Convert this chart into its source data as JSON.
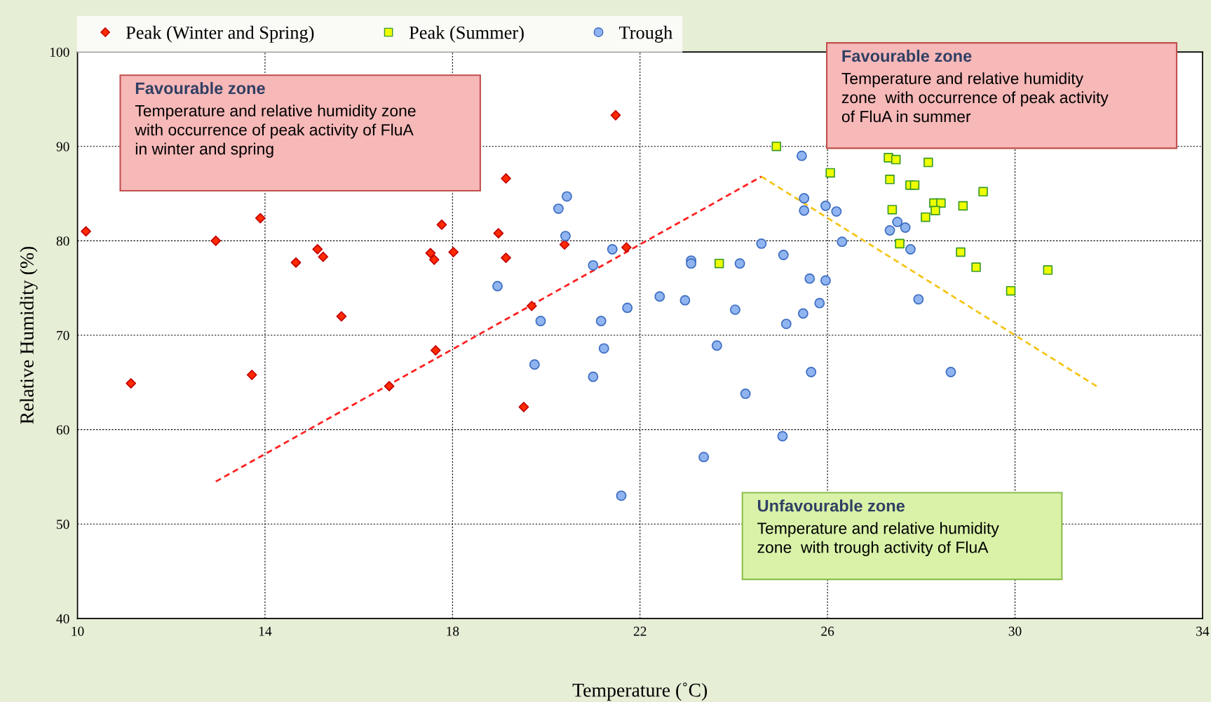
{
  "chart_data": {
    "type": "scatter",
    "xlabel": "Temperature (˚C)",
    "ylabel": "Relative Humidity (%)",
    "xlim": [
      10,
      34
    ],
    "ylim": [
      40,
      100
    ],
    "xticks": [
      10,
      14,
      18,
      22,
      26,
      30,
      34
    ],
    "yticks": [
      40,
      50,
      60,
      70,
      80,
      90,
      100
    ],
    "grid": true,
    "legend": "top",
    "series": [
      {
        "name": "Peak (Winter and Spring)",
        "color": "#ff2a00",
        "marker": "diamond",
        "x": [
          10.18,
          11.14,
          12.95,
          13.72,
          13.9,
          14.66,
          15.12,
          15.24,
          15.63,
          16.65,
          17.53,
          17.61,
          17.64,
          17.77,
          18.02,
          18.98,
          19.14,
          19.14,
          19.52,
          19.69,
          20.39,
          21.48,
          21.71
        ],
        "values": [
          81.0,
          64.9,
          80.0,
          65.8,
          82.4,
          77.7,
          79.1,
          78.3,
          72.0,
          64.6,
          78.7,
          78.0,
          68.4,
          81.7,
          78.8,
          80.8,
          86.6,
          78.2,
          62.4,
          73.1,
          79.6,
          93.3,
          79.3
        ]
      },
      {
        "name": "Peak (Summer)",
        "color": "#eeff00",
        "marker": "square",
        "x": [
          23.69,
          24.91,
          26.06,
          27.3,
          27.46,
          28.15,
          27.33,
          27.76,
          27.86,
          29.32,
          27.38,
          28.27,
          28.42,
          28.3,
          28.89,
          28.09,
          27.54,
          28.84,
          29.17,
          30.7,
          29.91
        ],
        "values": [
          77.6,
          90.0,
          87.2,
          88.8,
          88.6,
          88.3,
          86.5,
          85.9,
          85.9,
          85.2,
          83.3,
          84.0,
          84.0,
          83.2,
          83.7,
          82.5,
          79.7,
          78.8,
          77.2,
          76.9,
          74.7
        ]
      },
      {
        "name": "Trough",
        "color": "#8fb4f0",
        "marker": "circle",
        "x": [
          18.96,
          19.75,
          19.88,
          20.26,
          20.44,
          20.41,
          21.0,
          21.0,
          21.17,
          21.23,
          21.41,
          21.6,
          21.73,
          22.42,
          22.96,
          23.09,
          23.09,
          23.36,
          23.64,
          24.03,
          24.13,
          24.25,
          24.59,
          25.04,
          25.06,
          25.12,
          25.45,
          25.5,
          25.5,
          25.48,
          25.62,
          25.65,
          25.83,
          25.96,
          25.96,
          26.19,
          26.31,
          27.33,
          27.49,
          27.66,
          27.77,
          27.94,
          28.63
        ],
        "values": [
          75.2,
          66.9,
          71.5,
          83.4,
          84.7,
          80.5,
          77.4,
          65.6,
          71.5,
          68.6,
          79.1,
          53.0,
          72.9,
          74.1,
          73.7,
          77.9,
          77.6,
          57.1,
          68.9,
          72.7,
          77.6,
          63.8,
          79.7,
          59.3,
          78.5,
          71.2,
          89.0,
          84.5,
          83.2,
          72.3,
          76.0,
          66.1,
          73.4,
          83.7,
          75.8,
          83.1,
          79.9,
          81.1,
          82.0,
          81.4,
          79.1,
          73.8,
          66.1
        ]
      },
      {
        "type": "line",
        "color": "#ff2020",
        "line_style": "dashed",
        "marker": "none",
        "x": [
          12.95,
          24.59
        ],
        "values": [
          54.5,
          86.8
        ]
      },
      {
        "type": "line",
        "color": "#f5c518",
        "line_style": "dashed",
        "marker": "none",
        "x": [
          24.59,
          31.74
        ],
        "values": [
          86.8,
          64.6
        ]
      }
    ],
    "annotations": [
      "Favourable zone",
      "Temperature and relative humidity zone\nwith occurrence of peak activity of FluA\nin winter and spring",
      "Favourable zone",
      "Temperature and relative humidity\nzone  with occurrence of peak activity\nof FluA in summer",
      "Unfavourable zone",
      "Temperature and relative humidity\nzone  with trough activity of FluA"
    ]
  }
}
